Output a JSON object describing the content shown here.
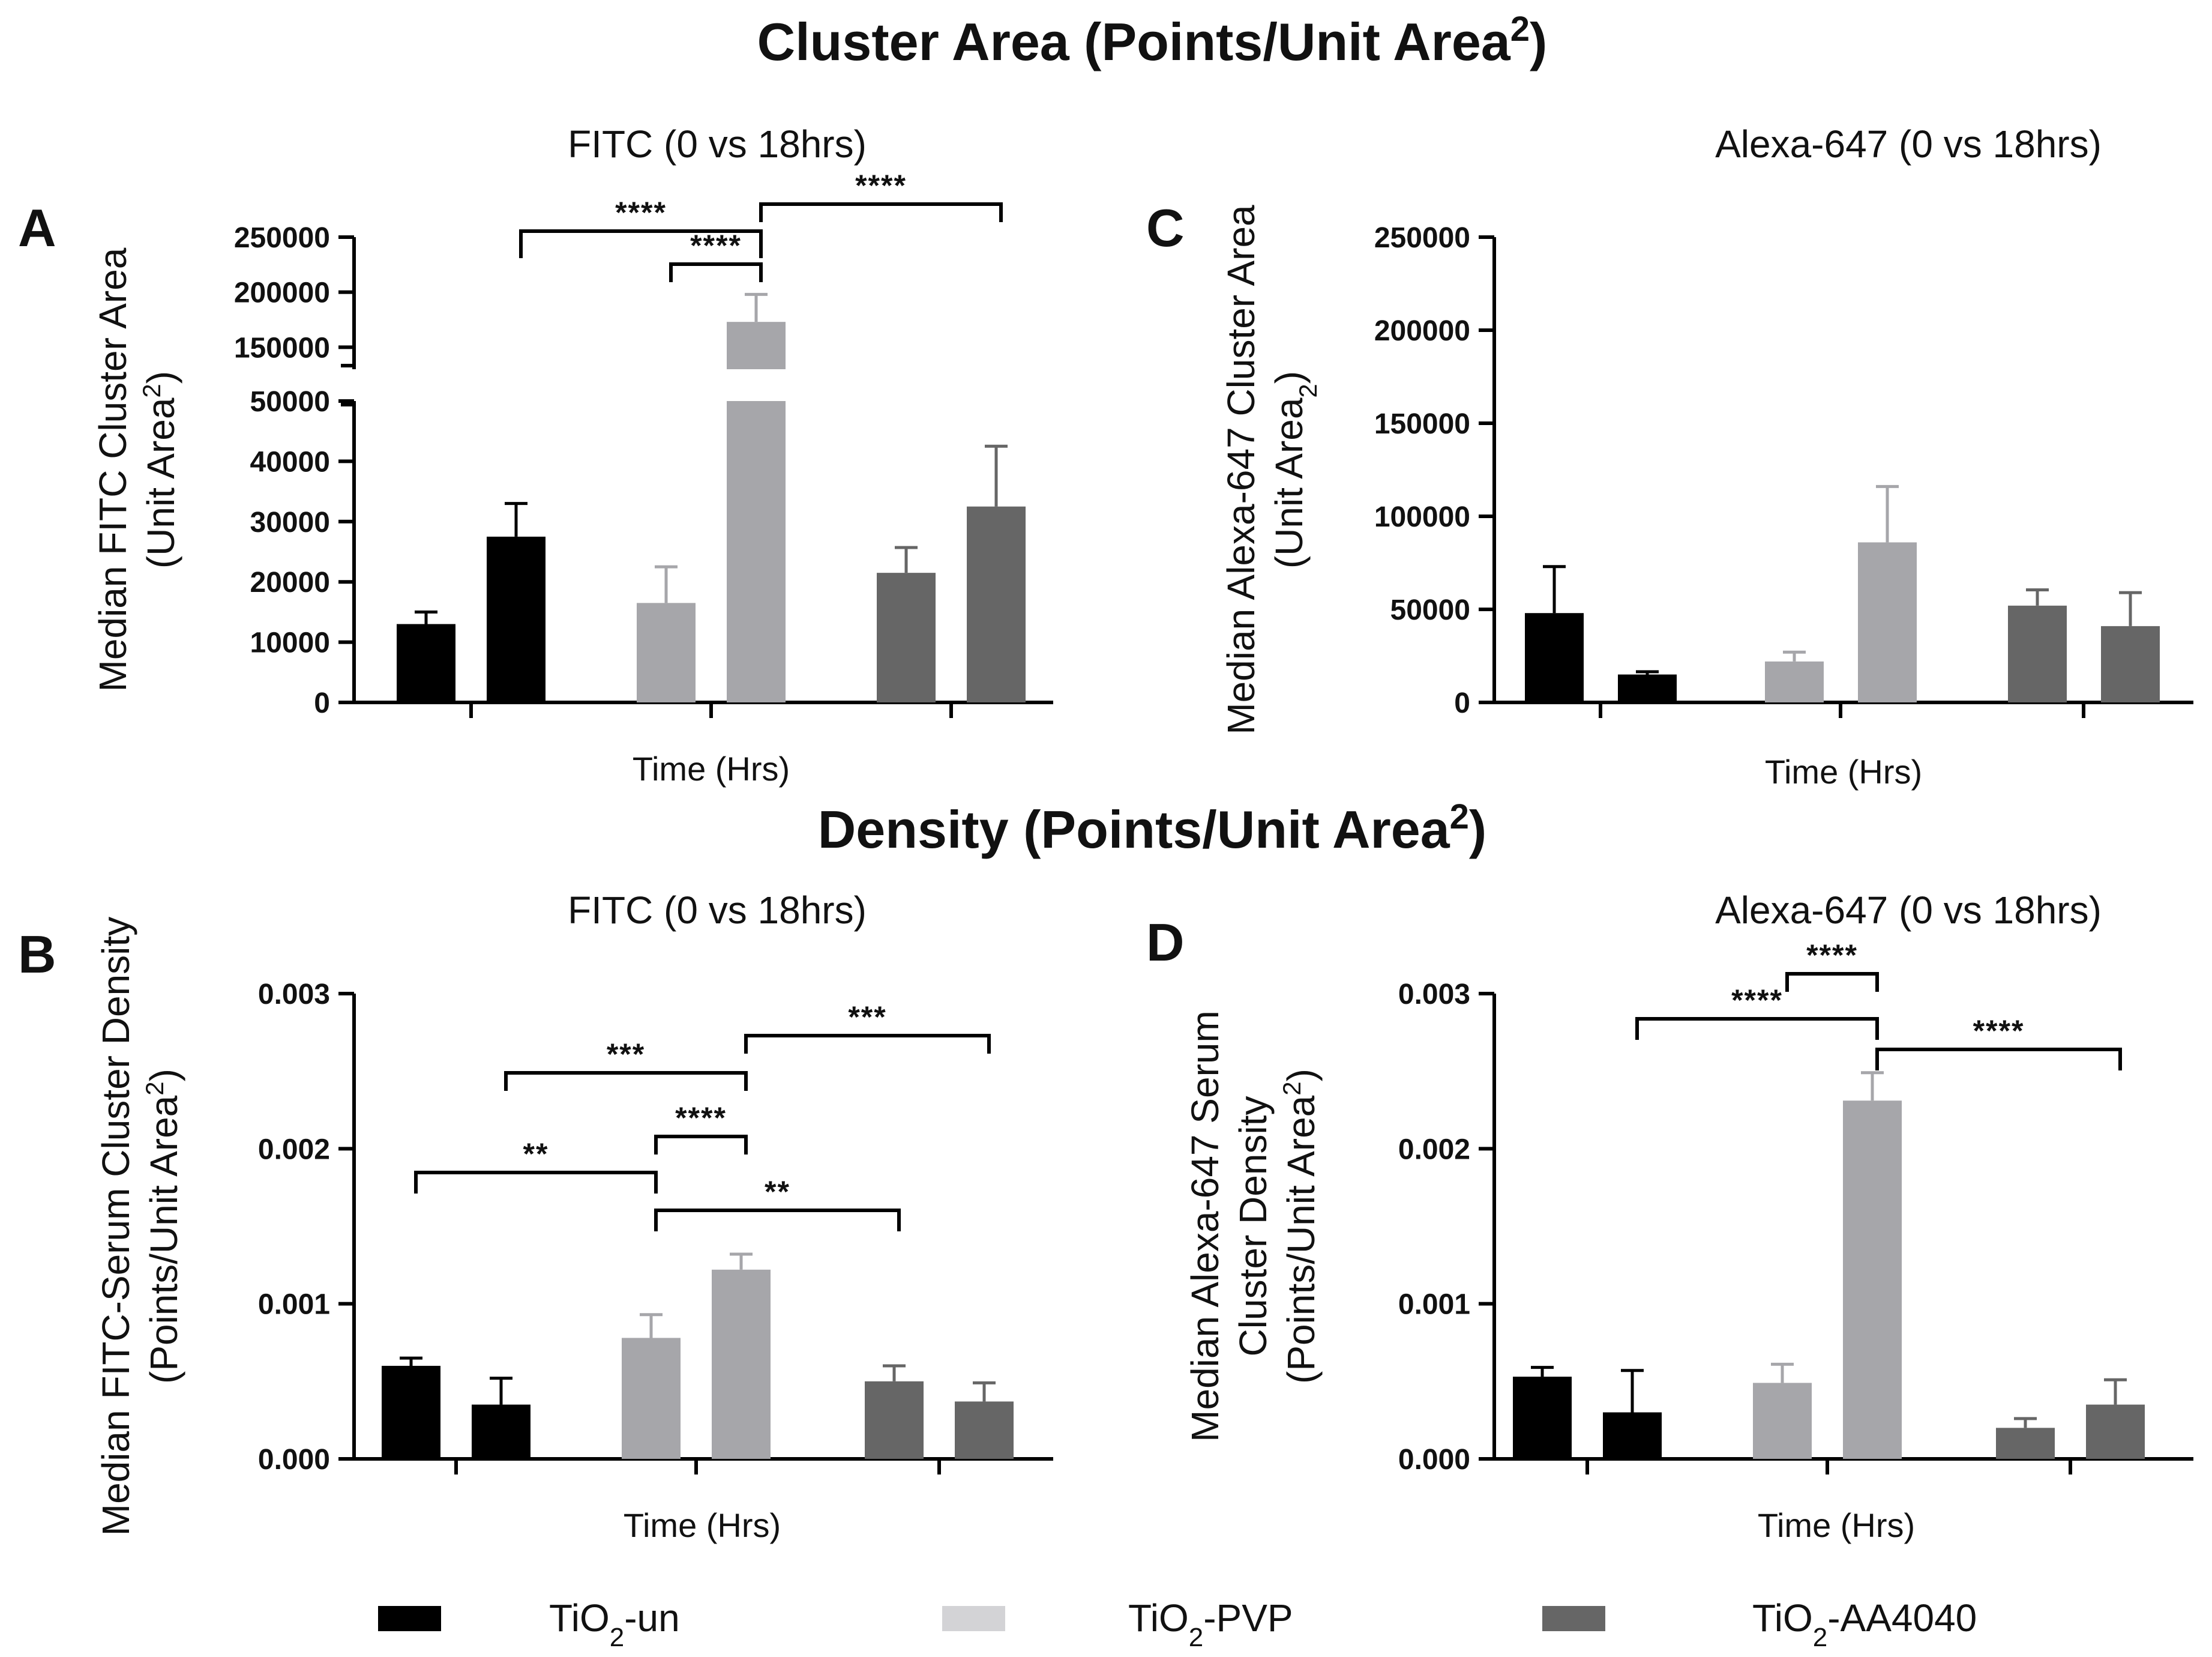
{
  "figure": {
    "section_titles": [
      {
        "id": "top",
        "text": "Cluster Area (Points/Unit Area",
        "sup": "2",
        "close": ")"
      },
      {
        "id": "bottom",
        "text": "Density (Points/Unit Area",
        "sup": "2",
        "close": ")"
      }
    ],
    "legend": [
      {
        "label_main": "TiO",
        "label_sub": "2",
        "label_rest": "-un",
        "color": "#000000"
      },
      {
        "label_main": "TiO",
        "label_sub": "2",
        "label_rest": "-PVP",
        "color": "#d3d3d6"
      },
      {
        "label_main": "TiO",
        "label_sub": "2",
        "label_rest": "-AA4040",
        "color": "#666666"
      }
    ]
  },
  "chart_data": [
    {
      "id": "A",
      "type": "bar",
      "letter": "A",
      "title": "FITC (0 vs 18hrs)",
      "ylabel_lines": [
        {
          "main": "Median FITC Cluster Area"
        },
        {
          "main": "(Unit Area",
          "script": "2",
          "script_kind": "sup",
          "close": ")"
        }
      ],
      "xlabel": "Time (Hrs)",
      "broken_axis": true,
      "ylim_lower": [
        0,
        50000
      ],
      "ylim_upper": [
        130000,
        250000
      ],
      "yticks_lower": [
        0,
        10000,
        20000,
        30000,
        40000,
        50000
      ],
      "yticks_upper": [
        150000,
        200000,
        250000
      ],
      "ytick_labels_lower": [
        "0",
        "10000",
        "20000",
        "30000",
        "40000",
        "50000"
      ],
      "ytick_labels_upper": [
        "150000",
        "200000",
        "250000"
      ],
      "bars": [
        {
          "group": 0,
          "value": 13000,
          "error": 2000,
          "color": "#000000"
        },
        {
          "group": 0,
          "value": 27500,
          "error": 5500,
          "color": "#000000"
        },
        {
          "group": 1,
          "value": 16500,
          "error": 6000,
          "color": "#a6a6aa"
        },
        {
          "group": 1,
          "value": 173000,
          "error": 25000,
          "color": "#a6a6aa"
        },
        {
          "group": 2,
          "value": 21500,
          "error": 4200,
          "color": "#666666"
        },
        {
          "group": 2,
          "value": 32500,
          "error": 10000,
          "color": "#666666"
        }
      ],
      "significance": [
        {
          "from": 1,
          "to": 3,
          "label": "****"
        },
        {
          "from": 2,
          "to": 3,
          "label": "****"
        },
        {
          "from": 3,
          "to": 5,
          "label": "****"
        }
      ]
    },
    {
      "id": "C",
      "type": "bar",
      "letter": "C",
      "title": "Alexa-647 (0 vs 18hrs)",
      "ylabel_lines": [
        {
          "main": "Median Alexa-647 Cluster Area"
        },
        {
          "main": "(Unit Area",
          "script": "2",
          "script_kind": "sub",
          "close": ")"
        }
      ],
      "xlabel": "Time (Hrs)",
      "broken_axis": false,
      "ylim": [
        0,
        250000
      ],
      "yticks": [
        0,
        50000,
        100000,
        150000,
        200000,
        250000
      ],
      "ytick_labels": [
        "0",
        "50000",
        "100000",
        "150000",
        "200000",
        "250000"
      ],
      "bars": [
        {
          "group": 0,
          "value": 48000,
          "error": 25000,
          "color": "#000000"
        },
        {
          "group": 0,
          "value": 15000,
          "error": 1500,
          "color": "#000000"
        },
        {
          "group": 1,
          "value": 22000,
          "error": 5000,
          "color": "#a6a6aa"
        },
        {
          "group": 1,
          "value": 86000,
          "error": 30000,
          "color": "#a6a6aa"
        },
        {
          "group": 2,
          "value": 52000,
          "error": 8500,
          "color": "#666666"
        },
        {
          "group": 2,
          "value": 41000,
          "error": 18000,
          "color": "#666666"
        }
      ],
      "significance": []
    },
    {
      "id": "B",
      "type": "bar",
      "letter": "B",
      "title": "FITC (0 vs 18hrs)",
      "ylabel_lines": [
        {
          "main": "Median FITC-Serum Cluster Density"
        },
        {
          "main": "(Points/Unit Area",
          "script": "2",
          "script_kind": "sup",
          "close": ")"
        }
      ],
      "xlabel": "Time (Hrs)",
      "broken_axis": false,
      "ylim": [
        0,
        0.003
      ],
      "yticks": [
        0,
        0.001,
        0.002,
        0.003
      ],
      "ytick_labels": [
        "0.000",
        "0.001",
        "0.002",
        "0.003"
      ],
      "bars": [
        {
          "group": 0,
          "value": 0.0006,
          "error": 5e-05,
          "color": "#000000"
        },
        {
          "group": 0,
          "value": 0.00035,
          "error": 0.00017,
          "color": "#000000"
        },
        {
          "group": 1,
          "value": 0.00078,
          "error": 0.00015,
          "color": "#a6a6aa"
        },
        {
          "group": 1,
          "value": 0.00122,
          "error": 0.0001,
          "color": "#a6a6aa"
        },
        {
          "group": 2,
          "value": 0.0005,
          "error": 0.0001,
          "color": "#666666"
        },
        {
          "group": 2,
          "value": 0.00037,
          "error": 0.00012,
          "color": "#666666"
        }
      ],
      "significance": [
        {
          "from": 0,
          "to": 2,
          "label": "**"
        },
        {
          "from": 2,
          "to": 3,
          "label": "****"
        },
        {
          "from": 2,
          "to": 4,
          "label": "**"
        },
        {
          "from": 1,
          "to": 3,
          "label": "***"
        },
        {
          "from": 3,
          "to": 5,
          "label": "***"
        }
      ]
    },
    {
      "id": "D",
      "type": "bar",
      "letter": "D",
      "title": "Alexa-647 (0 vs 18hrs)",
      "ylabel_lines": [
        {
          "main": "Median Alexa-647 Serum"
        },
        {
          "main": "Cluster Density"
        },
        {
          "main": "(Points/Unit Area",
          "script": "2",
          "script_kind": "sup",
          "close": ")"
        }
      ],
      "xlabel": "Time (Hrs)",
      "broken_axis": false,
      "ylim": [
        0,
        0.003
      ],
      "yticks": [
        0,
        0.001,
        0.002,
        0.003
      ],
      "ytick_labels": [
        "0.000",
        "0.001",
        "0.002",
        "0.003"
      ],
      "bars": [
        {
          "group": 0,
          "value": 0.00053,
          "error": 6e-05,
          "color": "#000000"
        },
        {
          "group": 0,
          "value": 0.0003,
          "error": 0.00027,
          "color": "#000000"
        },
        {
          "group": 1,
          "value": 0.00049,
          "error": 0.00012,
          "color": "#a6a6aa"
        },
        {
          "group": 1,
          "value": 0.00231,
          "error": 0.00018,
          "color": "#a6a6aa"
        },
        {
          "group": 2,
          "value": 0.0002,
          "error": 6e-05,
          "color": "#666666"
        },
        {
          "group": 2,
          "value": 0.00035,
          "error": 0.00016,
          "color": "#666666"
        }
      ],
      "significance": [
        {
          "from": 2,
          "to": 3,
          "label": "****"
        },
        {
          "from": 1,
          "to": 3,
          "label": "****"
        },
        {
          "from": 3,
          "to": 5,
          "label": "****"
        }
      ]
    }
  ]
}
